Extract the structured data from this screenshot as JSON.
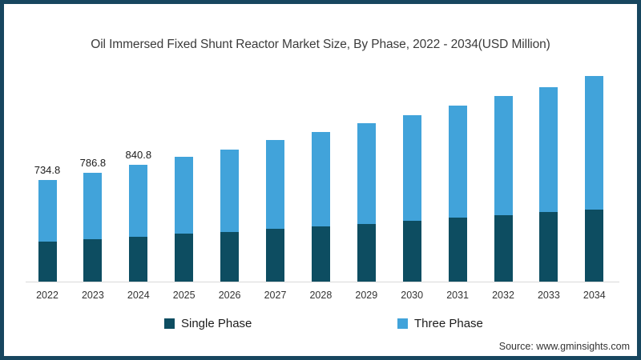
{
  "title": "Oil Immersed Fixed Shunt Reactor Market Size, By Phase, 2022 - 2034(USD Million)",
  "source": "Source: www.gminsights.com",
  "colors": {
    "frame_border": "#17465f",
    "background": "#ffffff",
    "single_phase": "#0d4d61",
    "three_phase": "#41a3da",
    "axis_line": "#d8d8d8",
    "title_text": "#3b3b3b",
    "label_text": "#1c1c1c"
  },
  "legend": {
    "items": [
      {
        "label": "Single Phase",
        "color": "#0d4d61"
      },
      {
        "label": "Three Phase",
        "color": "#41a3da"
      }
    ]
  },
  "chart_data": {
    "type": "bar",
    "stacked": true,
    "title": "Oil Immersed Fixed Shunt Reactor Market Size, By Phase, 2022 - 2034(USD Million)",
    "unit": "USD Million",
    "categories": [
      "2022",
      "2023",
      "2024",
      "2025",
      "2026",
      "2027",
      "2028",
      "2029",
      "2030",
      "2031",
      "2032",
      "2033",
      "2034"
    ],
    "series": [
      {
        "name": "Single Phase",
        "color": "#0d4d61",
        "values": [
          288,
          306,
          325,
          346,
          358,
          382,
          398,
          417,
          436,
          459,
          478,
          503,
          522
        ]
      },
      {
        "name": "Three Phase",
        "color": "#41a3da",
        "values": [
          446.8,
          480.8,
          515.8,
          552,
          594,
          637,
          680,
          723,
          767,
          812,
          860,
          902,
          962
        ]
      }
    ],
    "totals": [
      734.8,
      786.8,
      840.8,
      898,
      952,
      1019,
      1078,
      1140,
      1203,
      1271,
      1338,
      1405,
      1484
    ],
    "total_labels": [
      "734.8",
      "786.8",
      "840.8",
      "",
      "",
      "",
      "",
      "",
      "",
      "",
      "",
      "",
      ""
    ],
    "xlabel": "",
    "ylabel": "",
    "ylim": [
      0,
      1600
    ],
    "grid": false,
    "legend_position": "bottom"
  }
}
